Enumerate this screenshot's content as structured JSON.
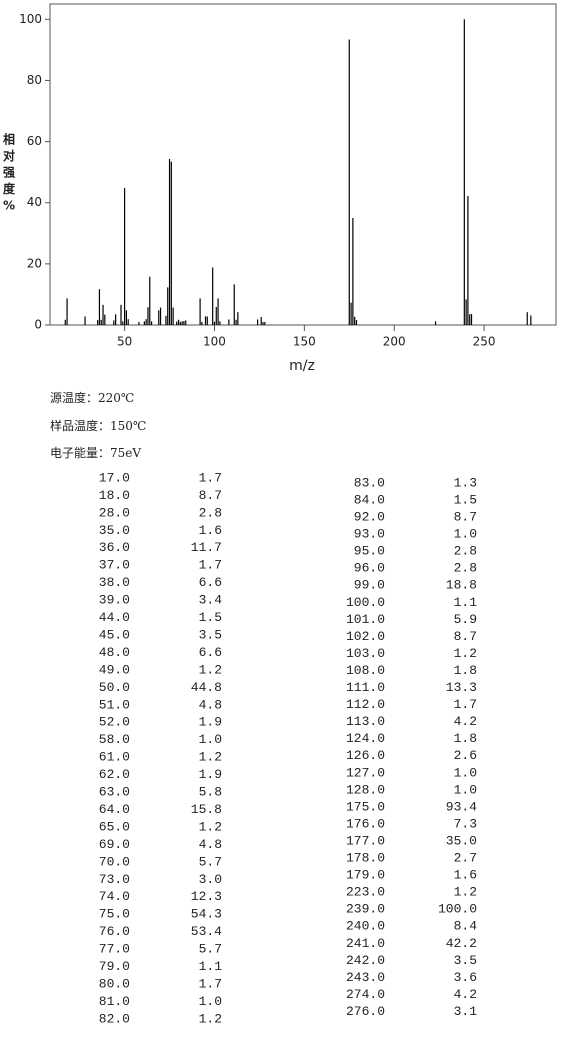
{
  "chart_data": {
    "type": "bar",
    "y_label": [
      "相",
      "对",
      "强",
      "度",
      "%"
    ],
    "x_label": "m/z",
    "x": [
      17,
      18,
      28,
      35,
      36,
      37,
      38,
      39,
      44,
      45,
      48,
      49,
      50,
      51,
      52,
      58,
      61,
      62,
      63,
      64,
      65,
      69,
      70,
      73,
      74,
      75,
      76,
      77,
      79,
      80,
      81,
      82,
      83,
      84,
      92,
      93,
      95,
      96,
      99,
      100,
      101,
      102,
      103,
      108,
      111,
      112,
      113,
      124,
      126,
      127,
      128,
      175,
      176,
      177,
      178,
      179,
      223,
      239,
      240,
      241,
      242,
      243,
      274,
      276
    ],
    "values": [
      1.7,
      8.7,
      2.8,
      1.6,
      11.7,
      1.7,
      6.6,
      3.4,
      1.5,
      3.5,
      6.6,
      1.2,
      44.8,
      4.8,
      1.9,
      1.0,
      1.2,
      1.9,
      5.8,
      15.8,
      1.2,
      4.8,
      5.7,
      3.0,
      12.3,
      54.3,
      53.4,
      5.7,
      1.1,
      1.7,
      1.0,
      1.2,
      1.3,
      1.5,
      8.7,
      1.0,
      2.8,
      2.8,
      18.8,
      1.1,
      5.9,
      8.7,
      1.2,
      1.8,
      13.3,
      1.7,
      4.2,
      1.8,
      2.6,
      1.0,
      1.0,
      93.4,
      7.3,
      35.0,
      2.7,
      1.6,
      1.2,
      100.0,
      8.4,
      42.2,
      3.5,
      3.6,
      4.2,
      3.1
    ],
    "color": "#000000",
    "xlim": [
      8.5,
      290
    ],
    "ylim": [
      0,
      105
    ],
    "xticks": [
      50,
      100,
      150,
      200,
      250
    ],
    "yticks": [
      0,
      20,
      40,
      60,
      80,
      100
    ]
  },
  "info": [
    "源温度：220℃",
    "样品温度：150℃",
    "电子能量：75eV"
  ],
  "peaks": {
    "left": [
      [
        "17.0",
        "1.7"
      ],
      [
        "18.0",
        "8.7"
      ],
      [
        "28.0",
        "2.8"
      ],
      [
        "35.0",
        "1.6"
      ],
      [
        "36.0",
        "11.7"
      ],
      [
        "37.0",
        "1.7"
      ],
      [
        "38.0",
        "6.6"
      ],
      [
        "39.0",
        "3.4"
      ],
      [
        "44.0",
        "1.5"
      ],
      [
        "45.0",
        "3.5"
      ],
      [
        "48.0",
        "6.6"
      ],
      [
        "49.0",
        "1.2"
      ],
      [
        "50.0",
        "44.8"
      ],
      [
        "51.0",
        "4.8"
      ],
      [
        "52.0",
        "1.9"
      ],
      [
        "58.0",
        "1.0"
      ],
      [
        "61.0",
        "1.2"
      ],
      [
        "62.0",
        "1.9"
      ],
      [
        "63.0",
        "5.8"
      ],
      [
        "64.0",
        "15.8"
      ],
      [
        "65.0",
        "1.2"
      ],
      [
        "69.0",
        "4.8"
      ],
      [
        "70.0",
        "5.7"
      ],
      [
        "73.0",
        "3.0"
      ],
      [
        "74.0",
        "12.3"
      ],
      [
        "75.0",
        "54.3"
      ],
      [
        "76.0",
        "53.4"
      ],
      [
        "77.0",
        "5.7"
      ],
      [
        "79.0",
        "1.1"
      ],
      [
        "80.0",
        "1.7"
      ],
      [
        "81.0",
        "1.0"
      ],
      [
        "82.0",
        "1.2"
      ]
    ],
    "right": [
      [
        "83.0",
        "1.3"
      ],
      [
        "84.0",
        "1.5"
      ],
      [
        "92.0",
        "8.7"
      ],
      [
        "93.0",
        "1.0"
      ],
      [
        "95.0",
        "2.8"
      ],
      [
        "96.0",
        "2.8"
      ],
      [
        "99.0",
        "18.8"
      ],
      [
        "100.0",
        "1.1"
      ],
      [
        "101.0",
        "5.9"
      ],
      [
        "102.0",
        "8.7"
      ],
      [
        "103.0",
        "1.2"
      ],
      [
        "108.0",
        "1.8"
      ],
      [
        "111.0",
        "13.3"
      ],
      [
        "112.0",
        "1.7"
      ],
      [
        "113.0",
        "4.2"
      ],
      [
        "124.0",
        "1.8"
      ],
      [
        "126.0",
        "2.6"
      ],
      [
        "127.0",
        "1.0"
      ],
      [
        "128.0",
        "1.0"
      ],
      [
        "175.0",
        "93.4"
      ],
      [
        "176.0",
        "7.3"
      ],
      [
        "177.0",
        "35.0"
      ],
      [
        "178.0",
        "2.7"
      ],
      [
        "179.0",
        "1.6"
      ],
      [
        "223.0",
        "1.2"
      ],
      [
        "239.0",
        "100.0"
      ],
      [
        "240.0",
        "8.4"
      ],
      [
        "241.0",
        "42.2"
      ],
      [
        "242.0",
        "3.5"
      ],
      [
        "243.0",
        "3.6"
      ],
      [
        "274.0",
        "4.2"
      ],
      [
        "276.0",
        "3.1"
      ]
    ]
  }
}
